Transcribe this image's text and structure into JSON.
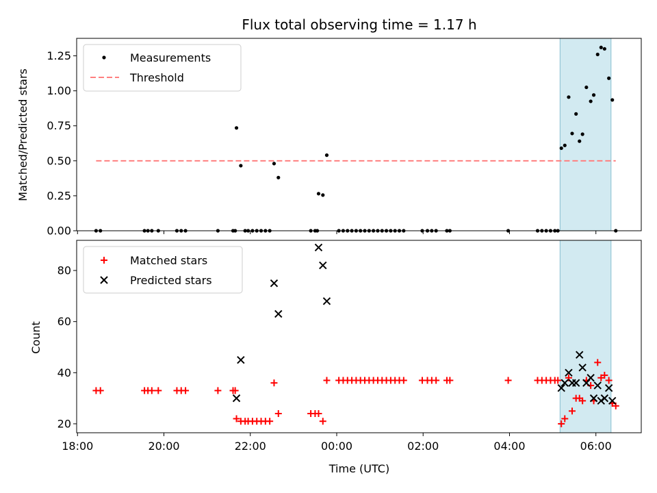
{
  "chart_data": [
    {
      "type": "scatter",
      "title": "Flux total observing time = 1.17 h",
      "xlabel": "",
      "ylabel": "Matched/Predicted stars",
      "ylim": [
        0.0,
        1.375
      ],
      "yticks": [
        "0.00",
        "0.25",
        "0.50",
        "0.75",
        "1.00",
        "1.25"
      ],
      "xlim_hours": [
        17.98,
        31.05
      ],
      "legend_position": "top-left",
      "highlight_span_hours": [
        29.17,
        30.35
      ],
      "highlight_color": "#add8e6",
      "series": [
        {
          "name": "Measurements",
          "color": "#000000",
          "marker": "dot",
          "points": [
            [
              18.43,
              0.0
            ],
            [
              18.53,
              0.0
            ],
            [
              19.55,
              0.0
            ],
            [
              19.63,
              0.0
            ],
            [
              19.72,
              0.0
            ],
            [
              19.87,
              0.0
            ],
            [
              20.3,
              0.0
            ],
            [
              20.4,
              0.0
            ],
            [
              20.5,
              0.0
            ],
            [
              21.25,
              0.0
            ],
            [
              21.6,
              0.0
            ],
            [
              21.65,
              0.0
            ],
            [
              21.68,
              0.735
            ],
            [
              21.78,
              0.465
            ],
            [
              21.88,
              0.0
            ],
            [
              21.95,
              0.0
            ],
            [
              22.05,
              0.0
            ],
            [
              22.15,
              0.0
            ],
            [
              22.25,
              0.0
            ],
            [
              22.35,
              0.0
            ],
            [
              22.45,
              0.0
            ],
            [
              22.55,
              0.48
            ],
            [
              22.65,
              0.38
            ],
            [
              23.4,
              0.0
            ],
            [
              23.5,
              0.0
            ],
            [
              23.55,
              0.0
            ],
            [
              23.58,
              0.265
            ],
            [
              23.68,
              0.255
            ],
            [
              23.77,
              0.54
            ],
            [
              24.05,
              0.0
            ],
            [
              24.15,
              0.0
            ],
            [
              24.25,
              0.0
            ],
            [
              24.35,
              0.0
            ],
            [
              24.45,
              0.0
            ],
            [
              24.55,
              0.0
            ],
            [
              24.65,
              0.0
            ],
            [
              24.75,
              0.0
            ],
            [
              24.85,
              0.0
            ],
            [
              24.95,
              0.0
            ],
            [
              25.05,
              0.0
            ],
            [
              25.15,
              0.0
            ],
            [
              25.25,
              0.0
            ],
            [
              25.35,
              0.0
            ],
            [
              25.45,
              0.0
            ],
            [
              25.55,
              0.0
            ],
            [
              25.98,
              0.0
            ],
            [
              26.1,
              0.0
            ],
            [
              26.2,
              0.0
            ],
            [
              26.3,
              0.0
            ],
            [
              26.55,
              0.0
            ],
            [
              26.62,
              0.0
            ],
            [
              27.97,
              0.0
            ],
            [
              28.65,
              0.0
            ],
            [
              28.75,
              0.0
            ],
            [
              28.85,
              0.0
            ],
            [
              28.95,
              0.0
            ],
            [
              29.05,
              0.0
            ],
            [
              29.12,
              0.0
            ],
            [
              29.2,
              0.59
            ],
            [
              29.28,
              0.61
            ],
            [
              29.37,
              0.955
            ],
            [
              29.45,
              0.695
            ],
            [
              29.54,
              0.835
            ],
            [
              29.62,
              0.64
            ],
            [
              29.69,
              0.69
            ],
            [
              29.78,
              1.025
            ],
            [
              29.88,
              0.925
            ],
            [
              29.95,
              0.97
            ],
            [
              30.04,
              1.26
            ],
            [
              30.12,
              1.31
            ],
            [
              30.2,
              1.3
            ],
            [
              30.3,
              1.09
            ],
            [
              30.38,
              0.935
            ],
            [
              30.46,
              0.0
            ]
          ]
        },
        {
          "name": "Threshold",
          "color": "#ff7f7f",
          "style": "dashed",
          "x": [
            18.43,
            30.46
          ],
          "y": [
            0.5,
            0.5
          ]
        }
      ]
    },
    {
      "type": "scatter",
      "xlabel": "Time (UTC)",
      "ylabel": "Count",
      "ylim": [
        16.5,
        91.8
      ],
      "yticks": [
        "20",
        "40",
        "60",
        "80"
      ],
      "xlim_hours": [
        17.98,
        31.05
      ],
      "xticks": [
        {
          "hours": 18,
          "label": "18:00"
        },
        {
          "hours": 20,
          "label": "20:00"
        },
        {
          "hours": 22,
          "label": "22:00"
        },
        {
          "hours": 24,
          "label": "00:00"
        },
        {
          "hours": 26,
          "label": "02:00"
        },
        {
          "hours": 28,
          "label": "04:00"
        },
        {
          "hours": 30,
          "label": "06:00"
        }
      ],
      "legend_position": "top-left",
      "highlight_span_hours": [
        29.17,
        30.35
      ],
      "highlight_color": "#add8e6",
      "series": [
        {
          "name": "Matched stars",
          "color": "#ff0000",
          "marker": "plus",
          "points": [
            [
              18.43,
              33
            ],
            [
              18.53,
              33
            ],
            [
              19.55,
              33
            ],
            [
              19.63,
              33
            ],
            [
              19.72,
              33
            ],
            [
              19.87,
              33
            ],
            [
              20.3,
              33
            ],
            [
              20.4,
              33
            ],
            [
              20.5,
              33
            ],
            [
              21.25,
              33
            ],
            [
              21.6,
              33
            ],
            [
              21.65,
              33
            ],
            [
              21.68,
              22
            ],
            [
              21.78,
              21
            ],
            [
              21.88,
              21
            ],
            [
              21.95,
              21
            ],
            [
              22.05,
              21
            ],
            [
              22.15,
              21
            ],
            [
              22.25,
              21
            ],
            [
              22.35,
              21
            ],
            [
              22.45,
              21
            ],
            [
              22.55,
              36
            ],
            [
              22.65,
              24
            ],
            [
              23.4,
              24
            ],
            [
              23.5,
              24
            ],
            [
              23.58,
              24
            ],
            [
              23.68,
              21
            ],
            [
              23.77,
              37
            ],
            [
              24.05,
              37
            ],
            [
              24.15,
              37
            ],
            [
              24.25,
              37
            ],
            [
              24.35,
              37
            ],
            [
              24.45,
              37
            ],
            [
              24.55,
              37
            ],
            [
              24.65,
              37
            ],
            [
              24.75,
              37
            ],
            [
              24.85,
              37
            ],
            [
              24.95,
              37
            ],
            [
              25.05,
              37
            ],
            [
              25.15,
              37
            ],
            [
              25.25,
              37
            ],
            [
              25.35,
              37
            ],
            [
              25.45,
              37
            ],
            [
              25.55,
              37
            ],
            [
              25.98,
              37
            ],
            [
              26.1,
              37
            ],
            [
              26.2,
              37
            ],
            [
              26.3,
              37
            ],
            [
              26.55,
              37
            ],
            [
              26.62,
              37
            ],
            [
              27.97,
              37
            ],
            [
              28.65,
              37
            ],
            [
              28.75,
              37
            ],
            [
              28.85,
              37
            ],
            [
              28.95,
              37
            ],
            [
              29.05,
              37
            ],
            [
              29.12,
              37
            ],
            [
              29.2,
              20
            ],
            [
              29.28,
              22
            ],
            [
              29.37,
              38
            ],
            [
              29.45,
              25
            ],
            [
              29.54,
              30
            ],
            [
              29.62,
              30
            ],
            [
              29.69,
              29
            ],
            [
              29.78,
              37
            ],
            [
              29.88,
              35
            ],
            [
              29.95,
              29
            ],
            [
              30.04,
              44
            ],
            [
              30.12,
              38
            ],
            [
              30.2,
              39
            ],
            [
              30.3,
              37
            ],
            [
              30.38,
              28
            ],
            [
              30.46,
              27
            ]
          ]
        },
        {
          "name": "Predicted stars",
          "color": "#000000",
          "marker": "x",
          "points": [
            [
              21.68,
              30
            ],
            [
              21.78,
              45
            ],
            [
              22.55,
              75
            ],
            [
              22.65,
              63
            ],
            [
              23.58,
              89
            ],
            [
              23.68,
              82
            ],
            [
              23.77,
              68
            ],
            [
              29.2,
              34
            ],
            [
              29.28,
              36
            ],
            [
              29.37,
              40
            ],
            [
              29.45,
              36
            ],
            [
              29.54,
              36
            ],
            [
              29.62,
              47
            ],
            [
              29.69,
              42
            ],
            [
              29.78,
              36
            ],
            [
              29.88,
              38
            ],
            [
              29.95,
              30
            ],
            [
              30.04,
              35
            ],
            [
              30.12,
              29
            ],
            [
              30.2,
              30
            ],
            [
              30.3,
              34
            ],
            [
              30.38,
              29
            ]
          ]
        }
      ]
    }
  ]
}
